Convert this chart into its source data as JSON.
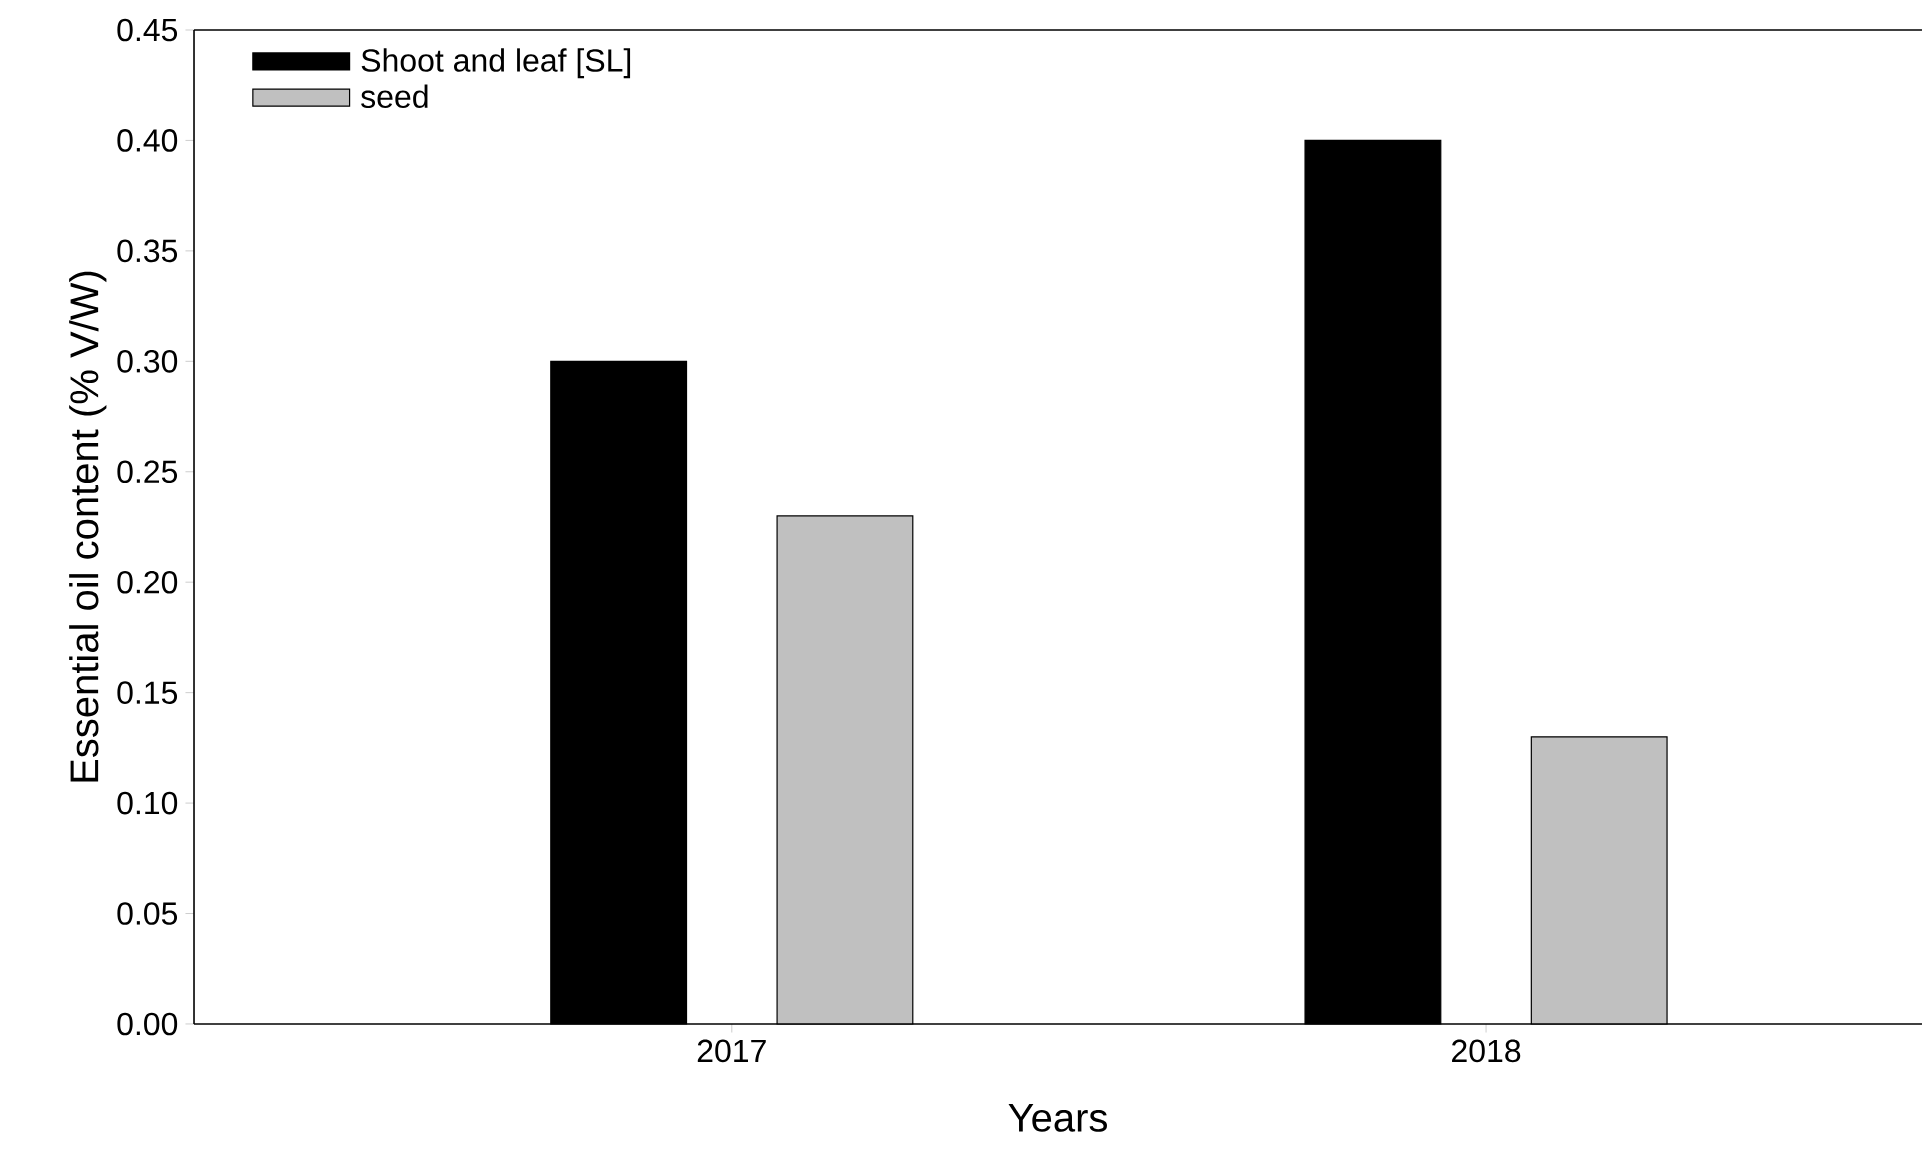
{
  "chart_data": {
    "type": "bar",
    "xlabel": "Years",
    "ylabel": "Essential oil content (% V/W)",
    "categories": [
      "2017",
      "2018"
    ],
    "series": [
      {
        "name": "Shoot and leaf [SL]",
        "color": "#000000",
        "values": [
          0.3,
          0.4
        ]
      },
      {
        "name": "seed",
        "color": "#c0c0c0",
        "values": [
          0.23,
          0.13
        ]
      }
    ],
    "ylim": [
      0,
      0.45
    ],
    "yticks": [
      {
        "value": 0,
        "label": "0.00"
      },
      {
        "value": 0.05,
        "label": "0.05"
      },
      {
        "value": 0.1,
        "label": "0.10"
      },
      {
        "value": 0.15,
        "label": "0.15"
      },
      {
        "value": 0.2,
        "label": "0.20"
      },
      {
        "value": 0.25,
        "label": "0.25"
      },
      {
        "value": 0.3,
        "label": "0.30"
      },
      {
        "value": 0.35,
        "label": "0.35"
      },
      {
        "value": 0.4,
        "label": "0.40"
      },
      {
        "value": 0.45,
        "label": "0.45"
      }
    ],
    "legend": "top left",
    "grid": false
  }
}
